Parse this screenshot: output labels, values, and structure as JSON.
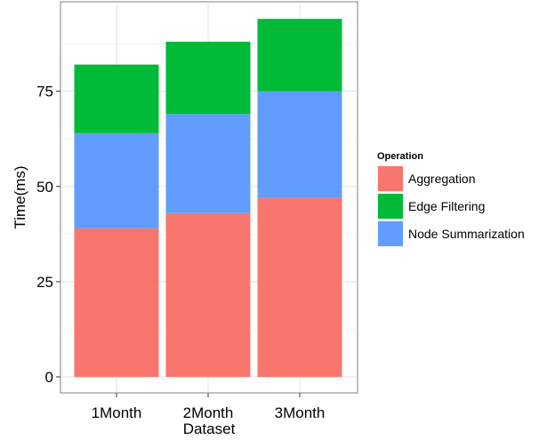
{
  "chart_data": {
    "type": "bar",
    "stacked": true,
    "categories": [
      "1Month",
      "2Month",
      "3Month"
    ],
    "series": [
      {
        "name": "Aggregation",
        "values": [
          39,
          43,
          47
        ],
        "color": "#F8766D"
      },
      {
        "name": "Node Summarization",
        "values": [
          25,
          26,
          28
        ],
        "color": "#619CFF"
      },
      {
        "name": "Edge Filtering",
        "values": [
          18,
          19,
          19
        ],
        "color": "#00BA38"
      }
    ],
    "xlabel": "Dataset",
    "ylabel": "Time(ms)",
    "ylim": [
      0,
      98
    ],
    "yticks": [
      0,
      25,
      50,
      75
    ],
    "grid": true,
    "legend": {
      "title": "Operation",
      "placement": "right",
      "entries": [
        "Aggregation",
        "Edge Filtering",
        "Node Summarization"
      ]
    }
  }
}
